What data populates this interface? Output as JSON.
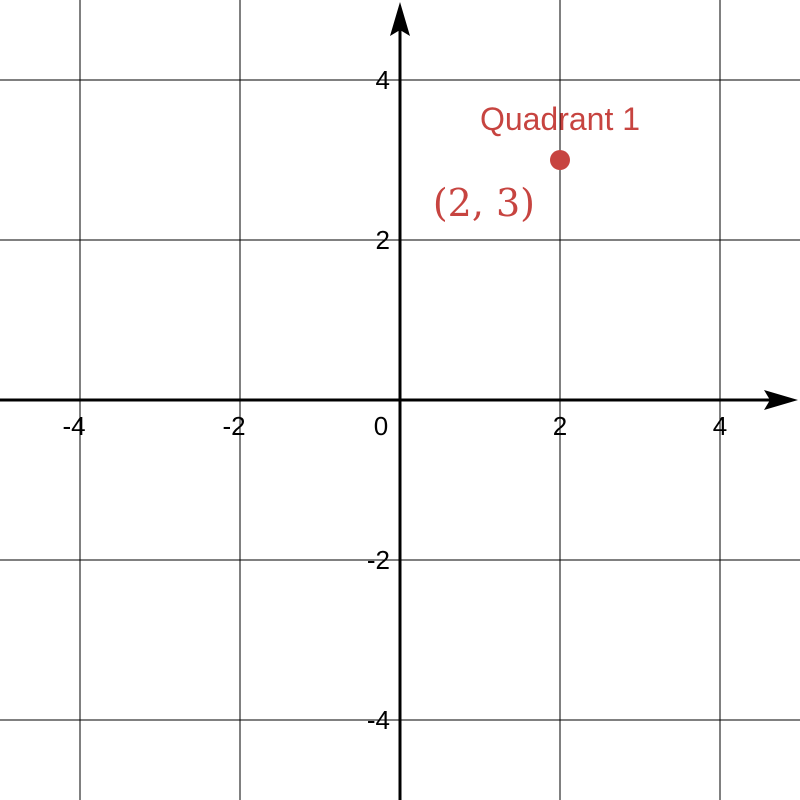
{
  "chart_data": {
    "type": "scatter",
    "title": "",
    "xlabel": "",
    "ylabel": "",
    "xlim": [
      -5,
      5
    ],
    "ylim": [
      -5,
      5
    ],
    "grid": true,
    "grid_step": 2,
    "x_ticks": [
      {
        "value": -4,
        "label": "-4"
      },
      {
        "value": -2,
        "label": "-2"
      },
      {
        "value": 2,
        "label": "2"
      },
      {
        "value": 4,
        "label": "4"
      }
    ],
    "y_ticks": [
      {
        "value": 4,
        "label": "4"
      },
      {
        "value": 2,
        "label": "2"
      },
      {
        "value": -2,
        "label": "-2"
      },
      {
        "value": -4,
        "label": "-4"
      }
    ],
    "origin_label": "0",
    "points": [
      {
        "x": 2,
        "y": 3,
        "label": "Quadrant 1",
        "coordinate_text": "(2, 3)",
        "color": "#c74440"
      }
    ]
  }
}
